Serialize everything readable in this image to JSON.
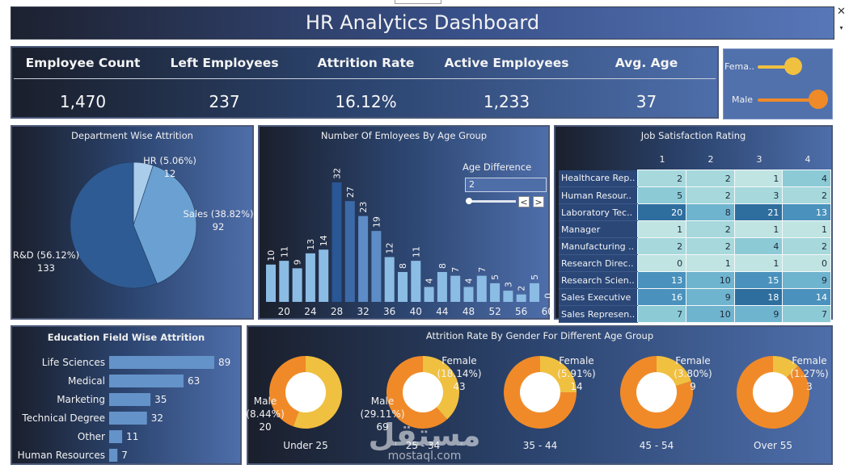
{
  "dashboard": {
    "title": "HR Analytics Dashboard",
    "close_glyph": "✕",
    "dropdown_glyph": "▾"
  },
  "kpis": [
    {
      "label": "Employee Count",
      "value": "1,470"
    },
    {
      "label": "Left Employees",
      "value": "237"
    },
    {
      "label": "Attrition Rate",
      "value": "16.12%"
    },
    {
      "label": "Active Employees",
      "value": "1,233"
    },
    {
      "label": "Avg. Age",
      "value": "37"
    }
  ],
  "gender_filter": {
    "items": [
      {
        "label": "Fema..",
        "color": "#f0c040"
      },
      {
        "label": "Male",
        "color": "#f08a28"
      }
    ]
  },
  "age_difference": {
    "label": "Age Difference",
    "value": "2",
    "prev_glyph": "<",
    "next_glyph": ">"
  },
  "watermark": {
    "arabic": "مستقل",
    "latin": "mostaql.com"
  },
  "chart_data": [
    {
      "type": "pie",
      "title": "Department Wise Attrition",
      "slices": [
        {
          "label": "HR",
          "percent": "5.06%",
          "value": 12,
          "color": "#a9cdeb"
        },
        {
          "label": "Sales",
          "percent": "38.82%",
          "value": 92,
          "color": "#6aa0d2"
        },
        {
          "label": "R&D",
          "percent": "56.12%",
          "value": 133,
          "color": "#2e5b93"
        }
      ]
    },
    {
      "type": "bar",
      "title": "Number Of Emloyees By Age Group",
      "bars": [
        {
          "x": 18,
          "value": 10
        },
        {
          "x": 20,
          "value": 11
        },
        {
          "x": 22,
          "value": 9
        },
        {
          "x": 24,
          "value": 13
        },
        {
          "x": 26,
          "value": 14
        },
        {
          "x": 28,
          "value": 32
        },
        {
          "x": 30,
          "value": 27
        },
        {
          "x": 32,
          "value": 23
        },
        {
          "x": 34,
          "value": 19
        },
        {
          "x": 36,
          "value": 12
        },
        {
          "x": 38,
          "value": 8
        },
        {
          "x": 40,
          "value": 11
        },
        {
          "x": 42,
          "value": 4
        },
        {
          "x": 44,
          "value": 8
        },
        {
          "x": 46,
          "value": 7
        },
        {
          "x": 48,
          "value": 4
        },
        {
          "x": 50,
          "value": 7
        },
        {
          "x": 52,
          "value": 5
        },
        {
          "x": 54,
          "value": 3
        },
        {
          "x": 56,
          "value": 2
        },
        {
          "x": 58,
          "value": 5
        },
        {
          "x": 60,
          "value": 0
        }
      ],
      "xticks": [
        "20",
        "24",
        "28",
        "32",
        "36",
        "40",
        "44",
        "48",
        "52",
        "56",
        "60"
      ],
      "ylim": [
        0,
        32
      ]
    },
    {
      "type": "table",
      "title": "Job Satisfaction Rating",
      "columns": [
        "1",
        "2",
        "3",
        "4"
      ],
      "rows": [
        {
          "label": "Healthcare Rep..",
          "values": [
            2,
            2,
            1,
            4
          ]
        },
        {
          "label": "Human Resour..",
          "values": [
            5,
            2,
            3,
            2
          ]
        },
        {
          "label": "Laboratory Tec..",
          "values": [
            20,
            8,
            21,
            13
          ]
        },
        {
          "label": "Manager",
          "values": [
            1,
            2,
            1,
            1
          ]
        },
        {
          "label": "Manufacturing ..",
          "values": [
            2,
            2,
            4,
            2
          ]
        },
        {
          "label": "Research Direc..",
          "values": [
            0,
            1,
            1,
            0
          ]
        },
        {
          "label": "Research Scien..",
          "values": [
            13,
            10,
            15,
            9
          ]
        },
        {
          "label": "Sales Executive",
          "values": [
            16,
            9,
            18,
            14
          ]
        },
        {
          "label": "Sales Represen..",
          "values": [
            7,
            10,
            9,
            7
          ]
        }
      ]
    },
    {
      "type": "bar",
      "orientation": "horizontal",
      "title": "Education Field Wise Attrition",
      "categories": [
        "Life Sciences",
        "Medical",
        "Marketing",
        "Technical Degree",
        "Other",
        "Human Resources"
      ],
      "values": [
        89,
        63,
        35,
        32,
        11,
        7
      ]
    },
    {
      "type": "pie",
      "subtype": "donut",
      "title": "Attrition Rate By Gender For Different Age Group",
      "groups": [
        {
          "label": "Under 25",
          "female_percent": 55.56,
          "male_text": "Male\n(8.44%)\n20",
          "female_text": ""
        },
        {
          "label": "25 - 34",
          "female_percent": 38.41,
          "male_text": "Male\n(29.11%)\n69",
          "female_text": "Female\n(18.14%)\n43"
        },
        {
          "label": "35 - 44",
          "female_percent": 25.0,
          "male_text": "",
          "female_text": "Female\n(5.91%)\n14"
        },
        {
          "label": "45 - 54",
          "female_percent": 20.0,
          "male_text": "",
          "female_text": "Female\n(3.80%)\n9"
        },
        {
          "label": "Over 55",
          "female_percent": 12.0,
          "male_text": "",
          "female_text": "Female\n(1.27%)\n3"
        }
      ],
      "female_color": "#f0c040",
      "male_color": "#f08a28"
    }
  ]
}
